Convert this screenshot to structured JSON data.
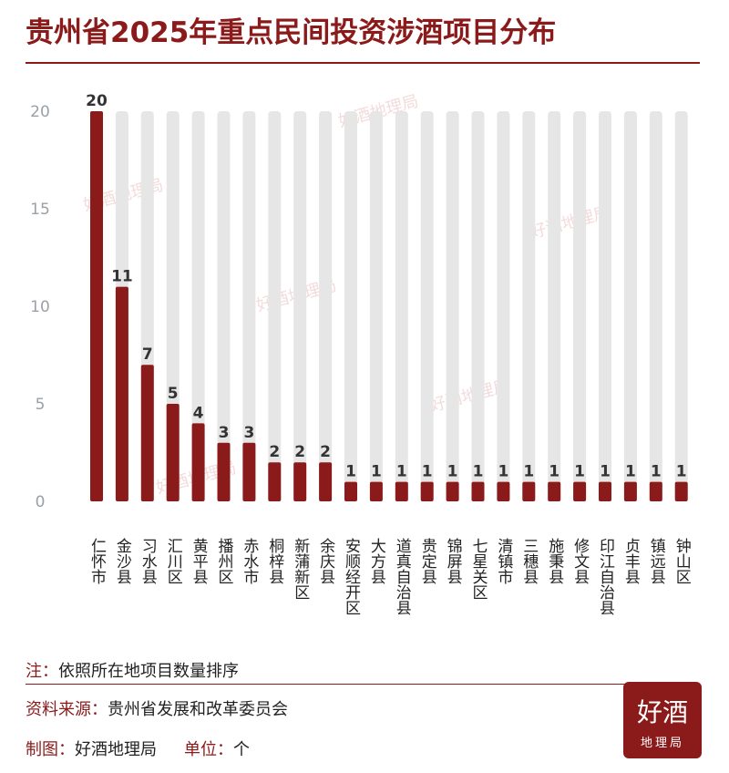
{
  "chart_data": {
    "type": "bar",
    "title": "贵州省2025年重点民间投资涉酒项目分布",
    "categories": [
      "仁怀市",
      "金沙县",
      "习水县",
      "汇川区",
      "黄平县",
      "播州区",
      "赤水市",
      "桐梓县",
      "新蒲新区",
      "余庆县",
      "安顺经开区",
      "大方县",
      "道真自治县",
      "贵定县",
      "锦屏县",
      "七星关区",
      "清镇市",
      "三穗县",
      "施秉县",
      "修文县",
      "印江自治县",
      "贞丰县",
      "镇远县",
      "钟山区"
    ],
    "values": [
      20,
      11,
      7,
      5,
      4,
      3,
      3,
      2,
      2,
      2,
      1,
      1,
      1,
      1,
      1,
      1,
      1,
      1,
      1,
      1,
      1,
      1,
      1,
      1
    ],
    "ylim": [
      0,
      20
    ],
    "yticks": [
      0,
      5,
      10,
      15,
      20
    ],
    "grid": false,
    "colors": {
      "bar": "#8b1a1a",
      "background_bar": "#e6e6e6",
      "accent": "#8b1a1a"
    }
  },
  "notes": {
    "note_key": "注：",
    "note_text": "依照所在地项目数量排序",
    "source_key": "资料来源：",
    "source_text": "贵州省发展和改革委员会",
    "maker_key": "制图：",
    "maker_text": "好酒地理局",
    "unit_key": "单位：",
    "unit_text": "个"
  },
  "logo": {
    "line1": "好酒",
    "line2": "地理局"
  },
  "watermark": "好酒地理局"
}
